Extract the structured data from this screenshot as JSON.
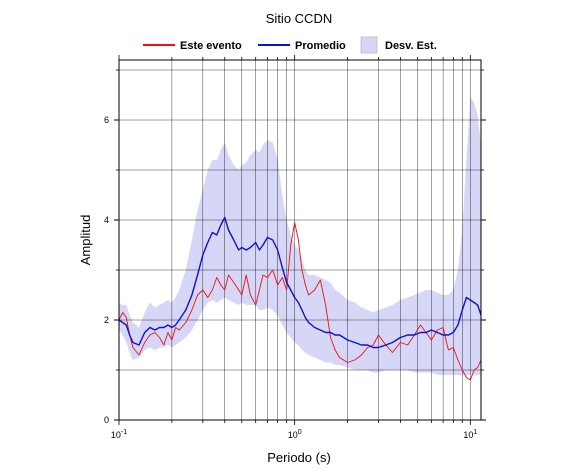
{
  "chart_data": {
    "type": "line",
    "title": "Sitio CCDN",
    "xlabel": "Periodo (s)",
    "ylabel": "Amplitud",
    "x_scale": "log",
    "xlim": [
      0.1,
      11.5
    ],
    "ylim": [
      0,
      7.2
    ],
    "grid": true,
    "legend": "top",
    "x_ticks": [
      {
        "value": 0.1,
        "base": "10",
        "exp": "-1"
      },
      {
        "value": 1,
        "base": "10",
        "exp": "0"
      },
      {
        "value": 10,
        "base": "10",
        "exp": "1"
      }
    ],
    "y_ticks": [
      0,
      2,
      4,
      6
    ],
    "colors": {
      "este_evento": "#ee1111",
      "promedio": "#1111cc",
      "desv_est": "#d6d6f7"
    },
    "series": [
      {
        "name": "Este evento",
        "x": [
          0.1,
          0.105,
          0.11,
          0.115,
          0.12,
          0.13,
          0.14,
          0.15,
          0.16,
          0.17,
          0.18,
          0.19,
          0.2,
          0.21,
          0.22,
          0.24,
          0.26,
          0.28,
          0.3,
          0.32,
          0.34,
          0.36,
          0.38,
          0.4,
          0.42,
          0.45,
          0.48,
          0.5,
          0.53,
          0.56,
          0.6,
          0.63,
          0.66,
          0.7,
          0.75,
          0.8,
          0.85,
          0.9,
          0.95,
          1.0,
          1.05,
          1.1,
          1.15,
          1.2,
          1.3,
          1.4,
          1.5,
          1.6,
          1.7,
          1.8,
          2.0,
          2.2,
          2.4,
          2.6,
          2.8,
          3.0,
          3.3,
          3.6,
          4.0,
          4.4,
          4.8,
          5.2,
          5.6,
          6.0,
          6.5,
          7.0,
          7.5,
          8.0,
          8.5,
          9.0,
          9.5,
          10.0,
          10.5,
          11.0,
          11.5
        ],
        "y": [
          2.0,
          2.15,
          2.05,
          1.7,
          1.45,
          1.3,
          1.55,
          1.7,
          1.75,
          1.65,
          1.5,
          1.75,
          1.6,
          1.85,
          1.8,
          1.95,
          2.2,
          2.5,
          2.6,
          2.45,
          2.6,
          2.85,
          2.7,
          2.6,
          2.9,
          2.75,
          2.6,
          2.5,
          2.9,
          2.5,
          2.3,
          2.6,
          2.9,
          2.85,
          3.0,
          2.7,
          2.85,
          2.6,
          3.5,
          3.95,
          3.6,
          3.0,
          2.7,
          2.5,
          2.6,
          2.8,
          2.3,
          1.65,
          1.4,
          1.25,
          1.15,
          1.2,
          1.3,
          1.45,
          1.5,
          1.7,
          1.5,
          1.35,
          1.55,
          1.5,
          1.7,
          1.9,
          1.75,
          1.6,
          1.8,
          1.85,
          1.4,
          1.45,
          1.2,
          1.0,
          0.85,
          0.8,
          1.0,
          1.05,
          1.2
        ]
      },
      {
        "name": "Promedio",
        "x": [
          0.1,
          0.105,
          0.11,
          0.115,
          0.12,
          0.13,
          0.14,
          0.15,
          0.16,
          0.17,
          0.18,
          0.19,
          0.2,
          0.21,
          0.22,
          0.24,
          0.26,
          0.28,
          0.3,
          0.32,
          0.34,
          0.36,
          0.38,
          0.4,
          0.42,
          0.45,
          0.48,
          0.5,
          0.53,
          0.56,
          0.6,
          0.63,
          0.66,
          0.7,
          0.75,
          0.8,
          0.85,
          0.9,
          0.95,
          1.0,
          1.05,
          1.1,
          1.15,
          1.2,
          1.3,
          1.4,
          1.5,
          1.6,
          1.7,
          1.8,
          2.0,
          2.2,
          2.4,
          2.6,
          2.8,
          3.0,
          3.3,
          3.6,
          4.0,
          4.4,
          4.8,
          5.2,
          5.6,
          6.0,
          6.5,
          7.0,
          7.5,
          8.0,
          8.5,
          9.0,
          9.5,
          10.0,
          10.5,
          11.0,
          11.5
        ],
        "y": [
          2.0,
          1.95,
          1.9,
          1.7,
          1.55,
          1.5,
          1.75,
          1.85,
          1.8,
          1.85,
          1.85,
          1.9,
          1.85,
          1.9,
          2.0,
          2.2,
          2.5,
          2.9,
          3.3,
          3.55,
          3.75,
          3.7,
          3.9,
          4.05,
          3.8,
          3.6,
          3.4,
          3.45,
          3.4,
          3.45,
          3.55,
          3.4,
          3.5,
          3.65,
          3.6,
          3.4,
          3.05,
          2.75,
          2.6,
          2.45,
          2.35,
          2.2,
          2.05,
          1.95,
          1.85,
          1.8,
          1.75,
          1.75,
          1.7,
          1.7,
          1.6,
          1.55,
          1.5,
          1.5,
          1.45,
          1.45,
          1.5,
          1.55,
          1.65,
          1.7,
          1.7,
          1.75,
          1.75,
          1.8,
          1.75,
          1.7,
          1.7,
          1.75,
          1.9,
          2.2,
          2.45,
          2.4,
          2.35,
          2.3,
          2.1
        ]
      },
      {
        "name": "Desv. Est.",
        "x": [
          0.1,
          0.105,
          0.11,
          0.115,
          0.12,
          0.13,
          0.14,
          0.15,
          0.16,
          0.17,
          0.18,
          0.19,
          0.2,
          0.21,
          0.22,
          0.24,
          0.26,
          0.28,
          0.3,
          0.32,
          0.34,
          0.36,
          0.38,
          0.4,
          0.42,
          0.45,
          0.48,
          0.5,
          0.53,
          0.56,
          0.6,
          0.63,
          0.66,
          0.7,
          0.75,
          0.8,
          0.85,
          0.9,
          0.95,
          1.0,
          1.05,
          1.1,
          1.15,
          1.2,
          1.3,
          1.4,
          1.5,
          1.6,
          1.7,
          1.8,
          2.0,
          2.2,
          2.4,
          2.6,
          2.8,
          3.0,
          3.3,
          3.6,
          4.0,
          4.4,
          4.8,
          5.2,
          5.6,
          6.0,
          6.5,
          7.0,
          7.5,
          8.0,
          8.5,
          9.0,
          9.5,
          10.0,
          10.5,
          11.0,
          11.5
        ],
        "lower": [
          1.8,
          1.7,
          1.55,
          1.35,
          1.2,
          1.25,
          1.4,
          1.45,
          1.4,
          1.45,
          1.45,
          1.5,
          1.45,
          1.5,
          1.55,
          1.65,
          1.8,
          2.0,
          2.2,
          2.35,
          2.4,
          2.35,
          2.4,
          2.45,
          2.4,
          2.35,
          2.3,
          2.35,
          2.3,
          2.3,
          2.3,
          2.2,
          2.2,
          2.25,
          2.2,
          2.1,
          1.9,
          1.75,
          1.65,
          1.55,
          1.5,
          1.4,
          1.35,
          1.3,
          1.25,
          1.2,
          1.15,
          1.15,
          1.1,
          1.1,
          1.05,
          1.0,
          1.0,
          1.0,
          0.95,
          0.95,
          1.0,
          1.0,
          1.0,
          1.0,
          0.95,
          0.95,
          0.95,
          0.95,
          0.9,
          0.9,
          0.9,
          0.9,
          0.9,
          0.9,
          0.9,
          0.9,
          0.9,
          0.9,
          0.9
        ],
        "upper": [
          2.35,
          2.3,
          2.3,
          2.1,
          1.95,
          1.85,
          2.15,
          2.35,
          2.25,
          2.3,
          2.35,
          2.4,
          2.35,
          2.45,
          2.6,
          3.0,
          3.6,
          4.2,
          4.6,
          5.0,
          5.2,
          5.2,
          5.4,
          5.55,
          5.3,
          5.1,
          5.0,
          5.1,
          5.15,
          5.3,
          5.4,
          5.35,
          5.5,
          5.6,
          5.55,
          5.2,
          4.5,
          4.0,
          3.7,
          3.5,
          3.4,
          3.2,
          3.0,
          2.9,
          2.9,
          2.85,
          2.8,
          2.75,
          2.6,
          2.55,
          2.4,
          2.35,
          2.25,
          2.2,
          2.15,
          2.2,
          2.25,
          2.3,
          2.4,
          2.45,
          2.5,
          2.55,
          2.6,
          2.6,
          2.55,
          2.5,
          2.5,
          2.6,
          3.0,
          3.8,
          5.2,
          6.45,
          6.35,
          6.1,
          5.5
        ]
      }
    ]
  }
}
